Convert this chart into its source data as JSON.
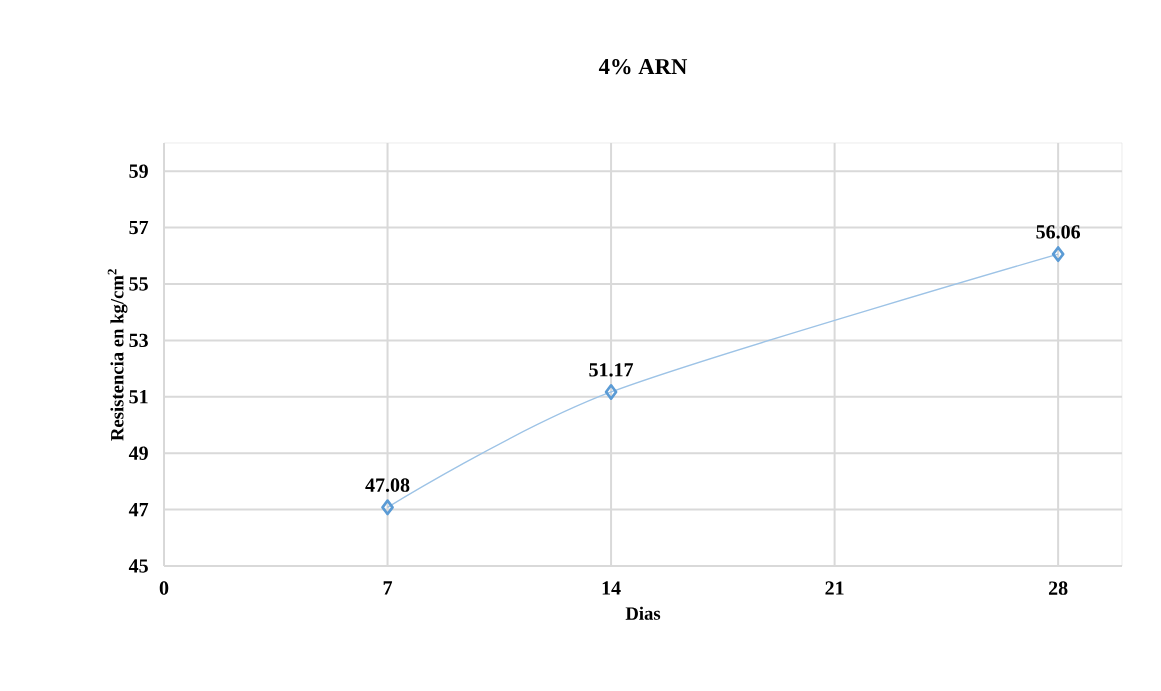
{
  "chart_data": {
    "type": "line",
    "title": "4% ARN",
    "xlabel": "Dias",
    "ylabel": "Resistencia en kg/cm$^{2}$",
    "x": [
      7,
      14,
      28
    ],
    "series": [
      {
        "color": "#5b9bd5",
        "values": [
          47.08,
          51.17,
          56.06
        ]
      }
    ],
    "xlim": [
      0,
      30
    ],
    "xticks": [
      0,
      7,
      14,
      21,
      28
    ],
    "ylim": [
      45,
      60
    ],
    "yticks": [
      45,
      47,
      49,
      51,
      53,
      55,
      57,
      59
    ],
    "grid": true,
    "marker": "diamond",
    "line_style": "solid",
    "data_labels": true
  }
}
